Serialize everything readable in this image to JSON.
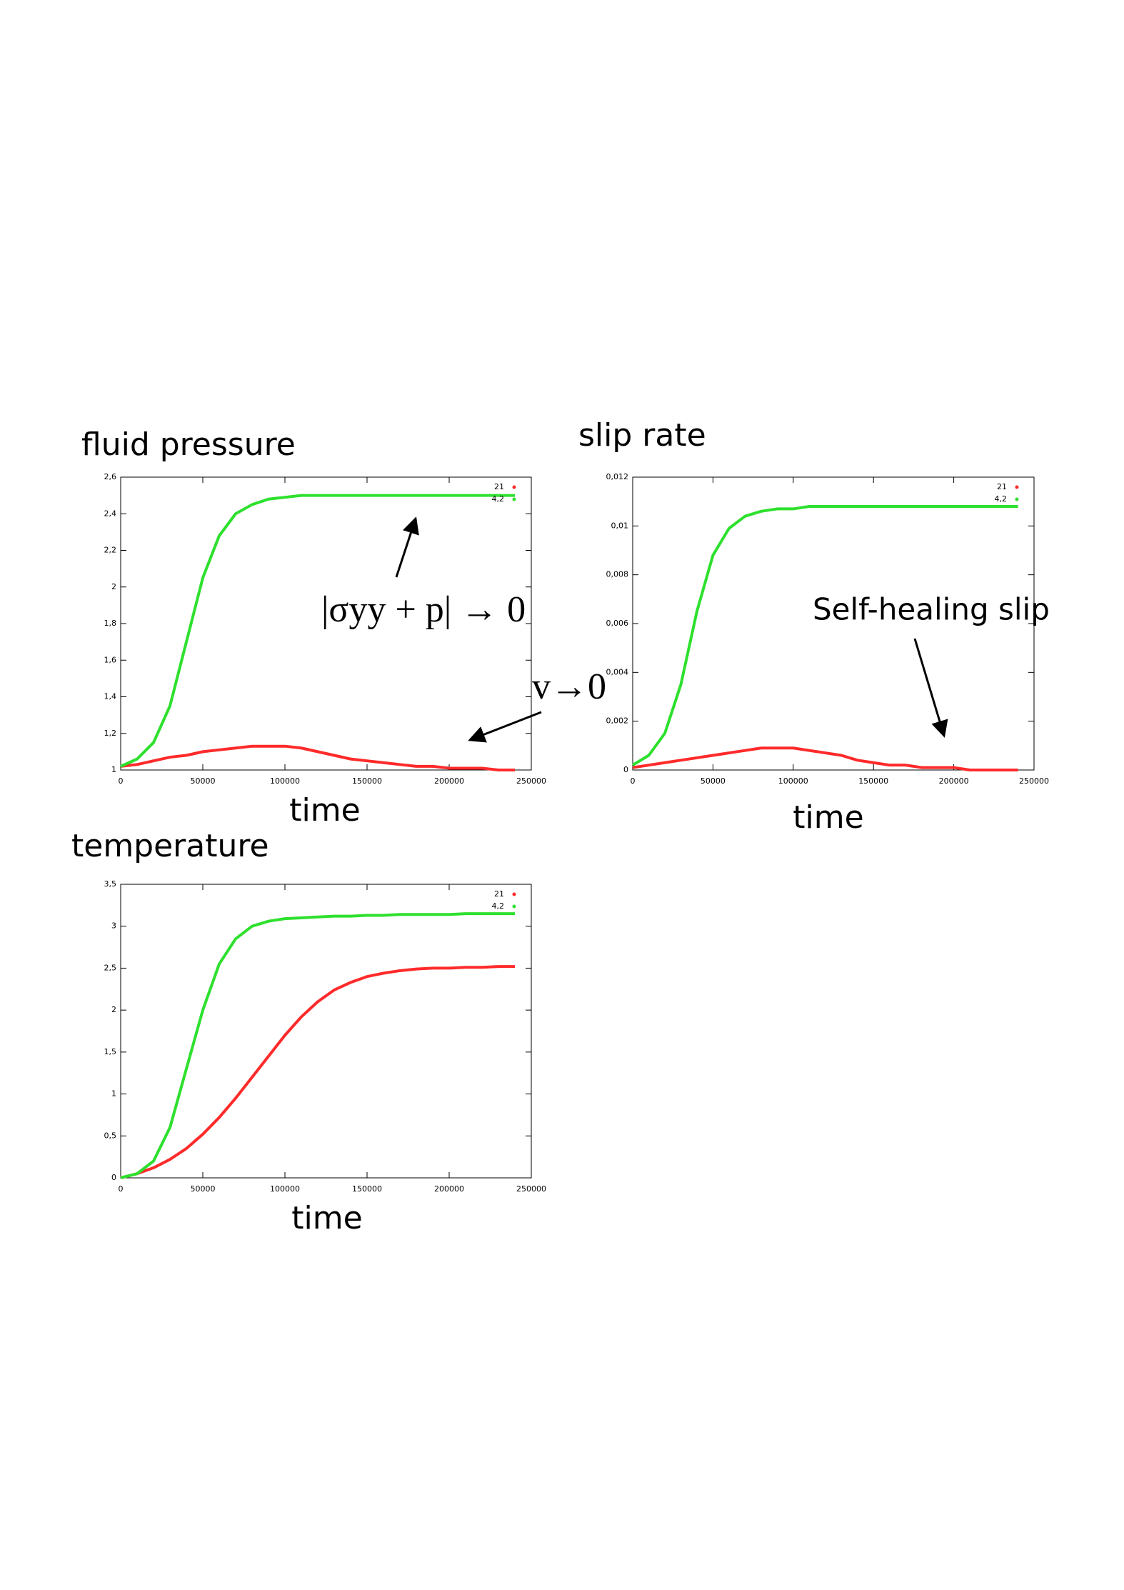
{
  "chart_data": [
    {
      "type": "line",
      "title": "fluid pressure",
      "xlabel": "time",
      "x": [
        0,
        10000,
        20000,
        30000,
        40000,
        50000,
        60000,
        70000,
        80000,
        90000,
        100000,
        110000,
        120000,
        130000,
        140000,
        150000,
        160000,
        170000,
        180000,
        190000,
        200000,
        210000,
        220000,
        230000,
        240000
      ],
      "series": [
        {
          "name": "21",
          "color": "#ff2a2a",
          "values": [
            1.02,
            1.03,
            1.05,
            1.07,
            1.08,
            1.1,
            1.11,
            1.12,
            1.13,
            1.13,
            1.13,
            1.12,
            1.1,
            1.08,
            1.06,
            1.05,
            1.04,
            1.03,
            1.02,
            1.02,
            1.01,
            1.01,
            1.01,
            1.0,
            1.0
          ]
        },
        {
          "name": "4,2",
          "color": "#2ee02e",
          "values": [
            1.02,
            1.06,
            1.15,
            1.35,
            1.7,
            2.05,
            2.28,
            2.4,
            2.45,
            2.48,
            2.49,
            2.5,
            2.5,
            2.5,
            2.5,
            2.5,
            2.5,
            2.5,
            2.5,
            2.5,
            2.5,
            2.5,
            2.5,
            2.5,
            2.5
          ]
        }
      ],
      "xlim": [
        0,
        250000
      ],
      "xticks": [
        0,
        50000,
        100000,
        150000,
        200000,
        250000
      ],
      "ylim": [
        1,
        2.6
      ],
      "yticks": [
        1,
        {
          "value": 1.2,
          "label": "1,2"
        },
        {
          "value": 1.4,
          "label": "1,4"
        },
        {
          "value": 1.6,
          "label": "1,6"
        },
        {
          "value": 1.8,
          "label": "1,8"
        },
        2,
        {
          "value": 2.2,
          "label": "2,2"
        },
        {
          "value": 2.4,
          "label": "2,4"
        },
        {
          "value": 2.6,
          "label": "2,6"
        }
      ],
      "legend": "top right",
      "annotations": [
        "|σyy + p| → 0",
        "v→0"
      ]
    },
    {
      "type": "line",
      "title": "slip rate",
      "xlabel": "time",
      "x": [
        0,
        10000,
        20000,
        30000,
        40000,
        50000,
        60000,
        70000,
        80000,
        90000,
        100000,
        110000,
        120000,
        130000,
        140000,
        150000,
        160000,
        170000,
        180000,
        190000,
        200000,
        210000,
        220000,
        230000,
        240000
      ],
      "series": [
        {
          "name": "21",
          "color": "#ff2a2a",
          "values": [
            0.0001,
            0.0002,
            0.0003,
            0.0004,
            0.0005,
            0.0006,
            0.0007,
            0.0008,
            0.0009,
            0.0009,
            0.0009,
            0.0008,
            0.0007,
            0.0006,
            0.0004,
            0.0003,
            0.0002,
            0.0002,
            0.0001,
            0.0001,
            0.0001,
            0,
            0,
            0,
            0
          ]
        },
        {
          "name": "4,2",
          "color": "#2ee02e",
          "values": [
            0.0002,
            0.0006,
            0.0015,
            0.0035,
            0.0065,
            0.0088,
            0.0099,
            0.0104,
            0.0106,
            0.0107,
            0.0107,
            0.0108,
            0.0108,
            0.0108,
            0.0108,
            0.0108,
            0.0108,
            0.0108,
            0.0108,
            0.0108,
            0.0108,
            0.0108,
            0.0108,
            0.0108,
            0.0108
          ]
        }
      ],
      "xlim": [
        0,
        250000
      ],
      "xticks": [
        0,
        50000,
        100000,
        150000,
        200000,
        250000
      ],
      "ylim": [
        0,
        0.012
      ],
      "yticks": [
        0,
        {
          "value": 0.002,
          "label": "0,002"
        },
        {
          "value": 0.004,
          "label": "0,004"
        },
        {
          "value": 0.006,
          "label": "0,006"
        },
        {
          "value": 0.008,
          "label": "0,008"
        },
        {
          "value": 0.01,
          "label": "0,01"
        },
        {
          "value": 0.012,
          "label": "0,012"
        }
      ],
      "legend": "top right",
      "annotations": [
        "Self-healing slip"
      ]
    },
    {
      "type": "line",
      "title": "temperature",
      "xlabel": "time",
      "x": [
        0,
        10000,
        20000,
        30000,
        40000,
        50000,
        60000,
        70000,
        80000,
        90000,
        100000,
        110000,
        120000,
        130000,
        140000,
        150000,
        160000,
        170000,
        180000,
        190000,
        200000,
        210000,
        220000,
        230000,
        240000
      ],
      "series": [
        {
          "name": "21",
          "color": "#ff2a2a",
          "values": [
            0,
            0.05,
            0.12,
            0.22,
            0.35,
            0.52,
            0.72,
            0.95,
            1.2,
            1.45,
            1.7,
            1.92,
            2.1,
            2.24,
            2.33,
            2.4,
            2.44,
            2.47,
            2.49,
            2.5,
            2.5,
            2.51,
            2.51,
            2.52,
            2.52
          ]
        },
        {
          "name": "4,2",
          "color": "#2ee02e",
          "values": [
            0,
            0.05,
            0.2,
            0.6,
            1.3,
            2.0,
            2.55,
            2.85,
            3.0,
            3.06,
            3.09,
            3.1,
            3.11,
            3.12,
            3.12,
            3.13,
            3.13,
            3.14,
            3.14,
            3.14,
            3.14,
            3.15,
            3.15,
            3.15,
            3.15
          ]
        }
      ],
      "xlim": [
        0,
        250000
      ],
      "xticks": [
        0,
        50000,
        100000,
        150000,
        200000,
        250000
      ],
      "ylim": [
        0,
        3.5
      ],
      "yticks": [
        0,
        {
          "value": 0.5,
          "label": "0,5"
        },
        1,
        {
          "value": 1.5,
          "label": "1,5"
        },
        2,
        {
          "value": 2.5,
          "label": "2,5"
        },
        3,
        {
          "value": 3.5,
          "label": "3,5"
        }
      ],
      "legend": "top right"
    }
  ]
}
